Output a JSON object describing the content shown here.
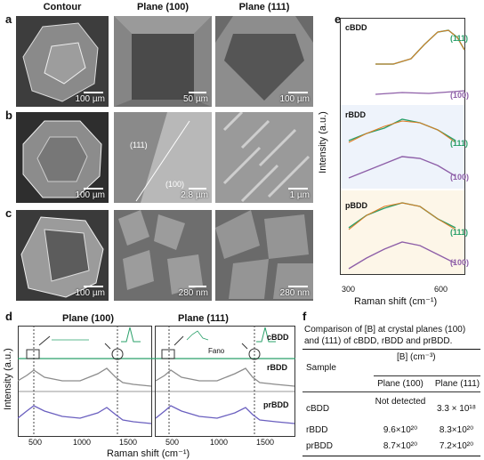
{
  "panel_labels": {
    "a": "a",
    "b": "b",
    "c": "c",
    "d": "d",
    "e": "e",
    "f": "f"
  },
  "column_headers": {
    "contour": "Contour",
    "plane100": "Plane (100)",
    "plane111": "Plane (111)"
  },
  "sem": {
    "row_a": [
      "100 µm",
      "50 µm",
      "100 µm"
    ],
    "row_b": [
      "100 µm",
      "2.8 µm",
      "1 µm"
    ],
    "row_b_annot": {
      "p111": "(111)",
      "p100": "(100)"
    },
    "row_c": [
      "100 µm",
      "280 nm",
      "280 nm"
    ]
  },
  "panel_d": {
    "title_left": "Plane (100)",
    "title_right": "Plane (111)",
    "ylabel": "Intensity (a.u.)",
    "xlabel": "Raman shift (cm⁻¹)",
    "xticks": [
      "500",
      "1000",
      "1500"
    ],
    "series_labels": [
      "cBDD",
      "rBDD",
      "prBDD"
    ],
    "fano": "Fano",
    "colors": {
      "cBDD": "#2aa06a",
      "rBDD": "#8c8c8c",
      "prBDD": "#6a5fbf"
    }
  },
  "panel_e": {
    "ylabel": "Intensity (a.u.)",
    "xlabel": "Raman shift (cm⁻¹)",
    "xticks": [
      "300",
      "600"
    ],
    "groups": [
      {
        "name": "cBDD",
        "top": "(111)",
        "bottom": "(100)"
      },
      {
        "name": "rBDD",
        "top": "(111)",
        "bottom": "(100)"
      },
      {
        "name": "pBDD",
        "top": "(111)",
        "bottom": "(100)"
      }
    ],
    "colors": {
      "green": "#2aa06a",
      "purple": "#8e5fa8",
      "fit": "#e07a22",
      "bg_r": "#eef3fb",
      "bg_p": "#fdf6e8"
    }
  },
  "panel_f": {
    "caption": "Comparison of [B] at crystal planes (100) and (111) of cBDD, rBDD and prBDD.",
    "header_sample": "Sample",
    "header_b": "[B] (cm⁻³)",
    "header_100": "Plane (100)",
    "header_111": "Plane (111)",
    "rows": [
      {
        "sample": "cBDD",
        "p100": "Not detected",
        "p111": "3.3 × 10¹⁸"
      },
      {
        "sample": "rBDD",
        "p100": "9.6×10²⁰",
        "p111": "8.3×10²⁰"
      },
      {
        "sample": "prBDD",
        "p100": "8.7×10²⁰",
        "p111": "7.2×10²⁰"
      }
    ]
  }
}
